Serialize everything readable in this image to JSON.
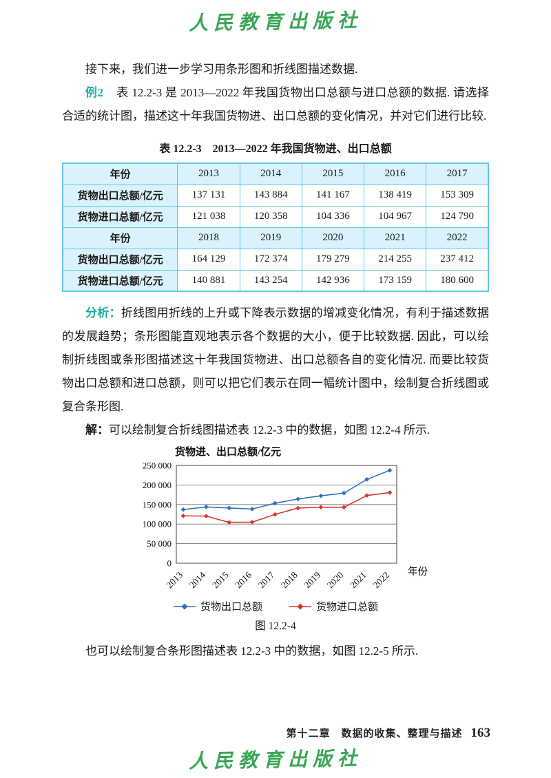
{
  "colors": {
    "accent": "#1aaf9e",
    "table-border": "#63c6e8",
    "table-header-bg": "#d9f2fb",
    "logo-green": "#3aa655"
  },
  "logo": {
    "text": "人民教育出版社"
  },
  "content": {
    "intro": "接下来，我们进一步学习用条形图和折线图描述数据.",
    "example": {
      "label": "例2",
      "text": "表 12.2-3 是 2013—2022 年我国货物出口总额与进口总额的数据. 请选择合适的统计图，描述这十年我国货物进、出口总额的变化情况，并对它们进行比较."
    },
    "analysis": {
      "label": "分析：",
      "text": "折线图用折线的上升或下降表示数据的增减变化情况，有利于描述数据的发展趋势；条形图能直观地表示各个数据的大小，便于比较数据. 因此，可以绘制折线图或条形图描述这十年我国货物进、出口总额各自的变化情况. 而要比较货物出口总额和进口总额，则可以把它们表示在同一幅统计图中，绘制复合折线图或复合条形图."
    },
    "solution": {
      "label": "解：",
      "text": "可以绘制复合折线图描述表 12.2-3 中的数据，如图 12.2-4 所示."
    },
    "closing": "也可以绘制复合条形图描述表 12.2-3 中的数据，如图 12.2-5 所示."
  },
  "table": {
    "title": "表 12.2-3　2013—2022 年我国货物进、出口总额",
    "rows": [
      [
        "年份",
        "2013",
        "2014",
        "2015",
        "2016",
        "2017"
      ],
      [
        "货物出口总额/亿元",
        "137 131",
        "143 884",
        "141 167",
        "138 419",
        "153 309"
      ],
      [
        "货物进口总额/亿元",
        "121 038",
        "120 358",
        "104 336",
        "104 967",
        "124 790"
      ],
      [
        "年份",
        "2018",
        "2019",
        "2020",
        "2021",
        "2022"
      ],
      [
        "货物出口总额/亿元",
        "164 129",
        "172 374",
        "179 279",
        "214 255",
        "237 412"
      ],
      [
        "货物进口总额/亿元",
        "140 881",
        "143 254",
        "142 936",
        "173 159",
        "180 600"
      ]
    ]
  },
  "chart_data": {
    "type": "line",
    "title": "",
    "ylabel": "货物进、出口总额/亿元",
    "xlabel": "年份",
    "categories": [
      "2013",
      "2014",
      "2015",
      "2016",
      "2017",
      "2018",
      "2019",
      "2020",
      "2021",
      "2022"
    ],
    "series": [
      {
        "name": "货物出口总额",
        "color": "#2f6fc4",
        "values": [
          137131,
          143884,
          141167,
          138419,
          153309,
          164129,
          172374,
          179279,
          214255,
          237412
        ]
      },
      {
        "name": "货物进口总额",
        "color": "#d9352c",
        "values": [
          121038,
          120358,
          104336,
          104967,
          124790,
          140881,
          143254,
          142936,
          173159,
          180600
        ]
      }
    ],
    "ylim": [
      0,
      250000
    ],
    "yticks": [
      0,
      50000,
      100000,
      150000,
      200000,
      250000
    ],
    "ytick_labels": [
      "0",
      "50 000",
      "100 000",
      "150 000",
      "200 000",
      "250 000"
    ],
    "grid": true,
    "legend_position": "bottom",
    "caption": "图 12.2-4"
  },
  "footer": {
    "chapter": "第十二章　数据的收集、整理与描述",
    "page": "163"
  }
}
